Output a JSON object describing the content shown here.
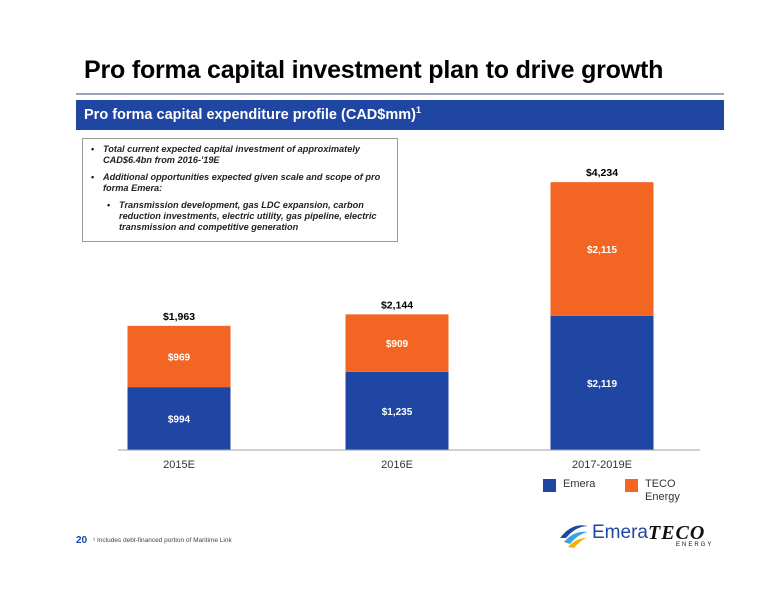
{
  "page": {
    "title": "Pro forma capital investment plan to drive growth",
    "banner_text": "Pro forma capital expenditure profile (CAD$mm)",
    "banner_sup": "1",
    "page_number": "20",
    "footnote": "¹ Includes debt-financed portion of Maritime Link"
  },
  "textbox": {
    "bullet1": "Total current expected capital investment of approximately CAD$6.4bn from 2016-'19E",
    "bullet2": "Additional opportunities expected given scale and scope of pro forma Emera:",
    "sub_bullet": "Transmission development, gas LDC expansion, carbon reduction investments, electric utility, gas pipeline, electric transmission and competitive generation"
  },
  "logos": {
    "emera": "Emera",
    "teco": "TECO",
    "teco_sub": "ENERGY"
  },
  "chart_data": {
    "type": "bar",
    "stacked": true,
    "categories": [
      "2015E",
      "2016E",
      "2017-2019E"
    ],
    "series": [
      {
        "name": "Emera",
        "color": "#1f46a3",
        "values": [
          994,
          1235,
          2119
        ],
        "labels": [
          "$994",
          "$1,235",
          "$2,119"
        ]
      },
      {
        "name": "TECO Energy",
        "color": "#f26522",
        "values": [
          969,
          909,
          2115
        ],
        "labels": [
          "$969",
          "$909",
          "$2,115"
        ]
      }
    ],
    "totals": [
      1963,
      2144,
      4234
    ],
    "total_labels": [
      "$1,963",
      "$2,144",
      "$4,234"
    ],
    "ylim": [
      0,
      4600
    ],
    "grid": false,
    "legend_position": "bottom-right"
  }
}
